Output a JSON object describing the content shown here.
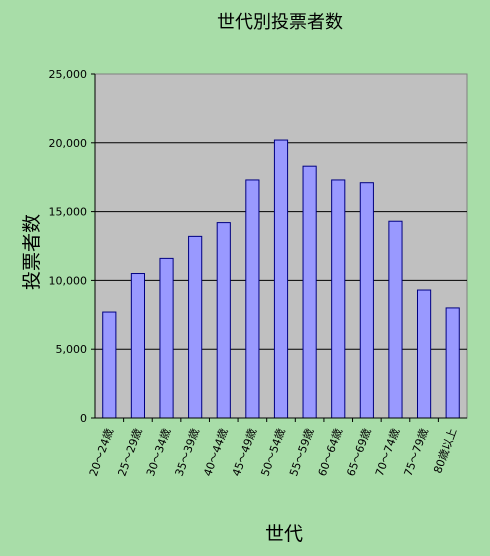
{
  "chart_data": {
    "type": "bar",
    "title": "世代別投票者数",
    "xlabel": "世代",
    "ylabel": "投票者数",
    "categories": [
      "20～24歳",
      "25～29歳",
      "30～34歳",
      "35～39歳",
      "40～44歳",
      "45～49歳",
      "50～54歳",
      "55～59歳",
      "60～64歳",
      "65～69歳",
      "70～74歳",
      "75～79歳",
      "80歳以上"
    ],
    "values": [
      7700,
      10500,
      11600,
      13200,
      14200,
      17300,
      20200,
      18300,
      17300,
      17100,
      14300,
      9300,
      8000
    ],
    "ylim": [
      0,
      25000
    ],
    "yticks": [
      "0",
      "5,000",
      "10,000",
      "15,000",
      "20,000",
      "25,000"
    ],
    "grid": true,
    "legend": "none",
    "colors": {
      "background": "#a8dda8",
      "plot_area": "#c0c0c0",
      "bar_fill": "#9999ff",
      "bar_stroke": "#000080"
    }
  }
}
